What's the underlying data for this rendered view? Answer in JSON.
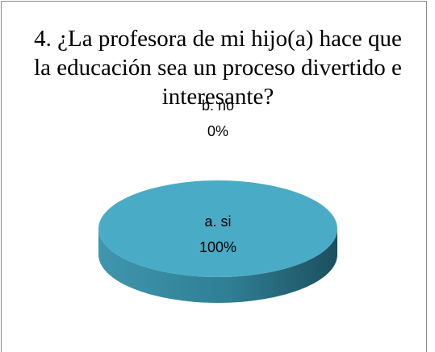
{
  "chart_data": {
    "type": "pie3d",
    "title": "4. ¿La profesora de mi hijo(a) hace que la educación sea un proceso divertido e interesante?",
    "categories": [
      "a. si",
      "b. no"
    ],
    "values": [
      100,
      0
    ],
    "value_labels": [
      "100%",
      "0%"
    ],
    "colors": [
      "#4aabc6",
      "#c0504d"
    ]
  }
}
